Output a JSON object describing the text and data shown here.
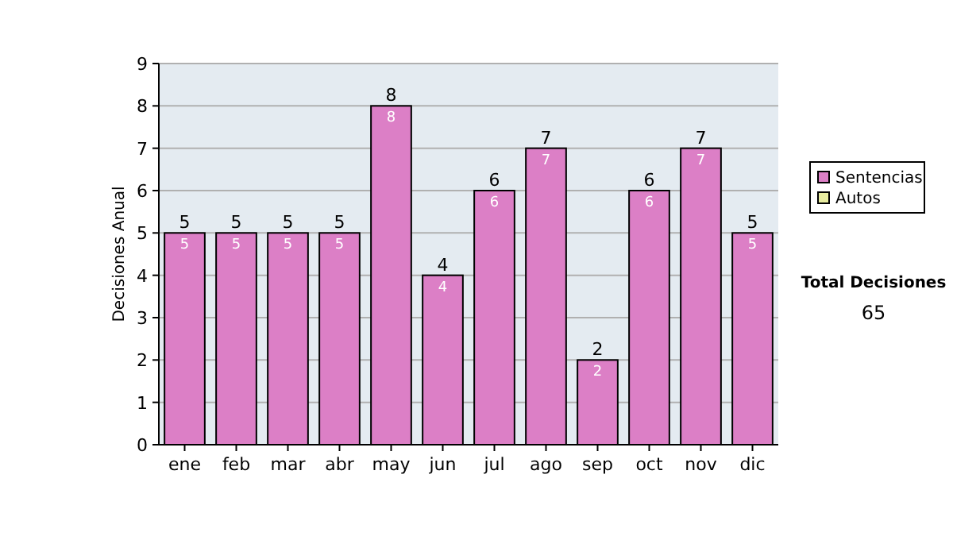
{
  "chart_data": {
    "type": "bar",
    "stacked": true,
    "ylabel": "Decisiones Anual",
    "categories": [
      "ene",
      "feb",
      "mar",
      "abr",
      "may",
      "jun",
      "jul",
      "ago",
      "sep",
      "oct",
      "nov",
      "dic"
    ],
    "series": [
      {
        "name": "Sentencias",
        "color": "#dc7fc6",
        "values": [
          5,
          5,
          5,
          5,
          8,
          4,
          6,
          7,
          2,
          6,
          7,
          5
        ],
        "value_labels": [
          "5",
          "5",
          "5",
          "5",
          "8",
          "4",
          "6",
          "7",
          "2",
          "6",
          "7",
          "5"
        ]
      },
      {
        "name": "Autos",
        "color": "#e8eca0",
        "values": [
          0,
          0,
          0,
          0,
          0,
          0,
          0,
          0,
          0,
          0,
          0,
          0
        ]
      }
    ],
    "totals": [
      "5",
      "5",
      "5",
      "5",
      "8",
      "4",
      "6",
      "7",
      "2",
      "6",
      "7",
      "5"
    ],
    "ylim": [
      0,
      9
    ],
    "yticks": [
      0,
      1,
      2,
      3,
      4,
      5,
      6,
      7,
      8,
      9
    ],
    "grid": "y",
    "legend": "right",
    "annotations": [
      "Total Decisiones",
      "65"
    ]
  }
}
